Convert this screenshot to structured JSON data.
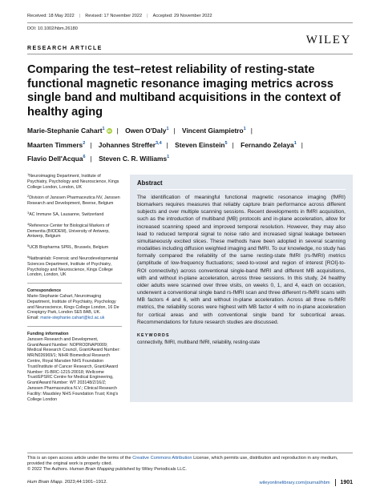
{
  "header": {
    "received": "Received: 18 May 2022",
    "revised": "Revised: 17 November 2022",
    "accepted": "Accepted: 29 November 2022",
    "doi": "DOI: 10.1002/hbm.26180",
    "publisher": "WILEY"
  },
  "section_label": "RESEARCH ARTICLE",
  "title": "Comparing the test–retest reliability of resting-state functional magnetic resonance imaging metrics across single band and multiband acquisitions in the context of healthy aging",
  "authors": [
    {
      "name": "Marie-Stephanie Cahart",
      "sup": "1"
    },
    {
      "name": "Owen O'Daly",
      "sup": "1"
    },
    {
      "name": "Vincent Giampietro",
      "sup": "1"
    },
    {
      "name": "Maarten Timmers",
      "sup": "2"
    },
    {
      "name": "Johannes Streffer",
      "sup": "3,4"
    },
    {
      "name": "Steven Einstein",
      "sup": "5"
    },
    {
      "name": "Fernando Zelaya",
      "sup": "1"
    },
    {
      "name": "Flavio Dell'Acqua",
      "sup": "6"
    },
    {
      "name": "Steven C. R. Williams",
      "sup": "1"
    }
  ],
  "affiliations": [
    {
      "num": "1",
      "text": "Neuroimaging Department, Institute of Psychiatry, Psychology and Neuroscience, Kings College London, London, UK"
    },
    {
      "num": "2",
      "text": "Division of Janssen Pharmaceutica NV, Janssen Research and Development, Beerse, Belgium"
    },
    {
      "num": "3",
      "text": "AC Immune SA, Lausanne, Switzerland"
    },
    {
      "num": "4",
      "text": "Reference Center for Biological Markers of Dementia (BIODEM), University of Antwerp, Antwerp, Belgium"
    },
    {
      "num": "5",
      "text": "UCB Biopharma SPRL, Brussels, Belgium"
    },
    {
      "num": "6",
      "text": "Natbrainlab: Forensic and Neurodevelopmental Sciences Department, Institute of Psychiatry, Psychology and Neuroscience, Kings College London, London, UK"
    }
  ],
  "correspondence": {
    "heading": "Correspondence",
    "text": "Marie-Stephanie Cahart, Neuroimaging Department, Institute of Psychiatry, Psychology and Neuroscience, Kings College London, 16 De Crespigny Park, London SE5 8AB, UK.",
    "email_label": "Email:",
    "email": "marie-stephanie.cahart@kcl.ac.uk"
  },
  "funding": {
    "heading": "Funding information",
    "text": "Janssen Research and Development, Grant/Award Number: NOPRODNAP0009; Medical Research Council, Grant/Award Number: MR/N026969/1; NIHR Biomedical Research Centre, Royal Marsden NHS Foundation Trust/Institute of Cancer Research, Grant/Award Number: IS-BRC-1215-20018; Wellcome Trust/EPSRC Centre for Medical Engineering, Grant/Award Number: WT 203148/Z/16/Z; Janssen Pharmaceutica N.V.; Clinical Research Facility: Maudsley NHS Foundation Trust; King's College London"
  },
  "abstract": {
    "heading": "Abstract",
    "text": "The identification of meaningful functional magnetic resonance imaging (fMRI) biomarkers requires measures that reliably capture brain performance across different subjects and over multiple scanning sessions. Recent developments in fMRI acquisition, such as the introduction of multiband (MB) protocols and in-plane acceleration, allow for increased scanning speed and improved temporal resolution. However, they may also lead to reduced temporal signal to noise ratio and increased signal leakage between simultaneously excited slices. These methods have been adopted in several scanning modalities including diffusion weighted imaging and fMRI. To our knowledge, no study has formally compared the reliability of the same resting-state fMRI (rs-fMRI) metrics (amplitude of low-frequency fluctuations; seed-to-voxel and region of interest [ROI]-to-ROI connectivity) across conventional single-band fMRI and different MB acquisitions, with and without in-plane acceleration, across three sessions. In this study, 24 healthy older adults were scanned over three visits, on weeks 0, 1, and 4, each on occasion, underwent a conventional single band rs-fMRI scan and three different rs-fMRI scans with MB factors 4 and 6, with and without in-plane acceleration. Across all three rs-fMRI metrics, the reliability scores were highest with MB factor 4 with no in-plane acceleration for cortical areas and with conventional single band for subcortical areas. Recommendations for future research studies are discussed."
  },
  "keywords": {
    "heading": "KEYWORDS",
    "text": "connectivity, fMRI, multiband fMRI, reliability, resting-state"
  },
  "footnote": {
    "pre": "This is an open access article under the terms of the ",
    "link": "Creative Commons Attribution",
    "post": " License, which permits use, distribution and reproduction in any medium, provided the original work is properly cited.",
    "copyright_pre": "© 2022 The Authors. ",
    "copyright_journal": "Human Brain Mapping",
    "copyright_post": " published by Wiley Periodicals LLC."
  },
  "journal_line": {
    "journal": "Hum Brain Mapp.",
    "details": " 2023;44:1901–1912."
  },
  "site_url": "wileyonlinelibrary.com/journal/hbm",
  "page_number": "1901"
}
